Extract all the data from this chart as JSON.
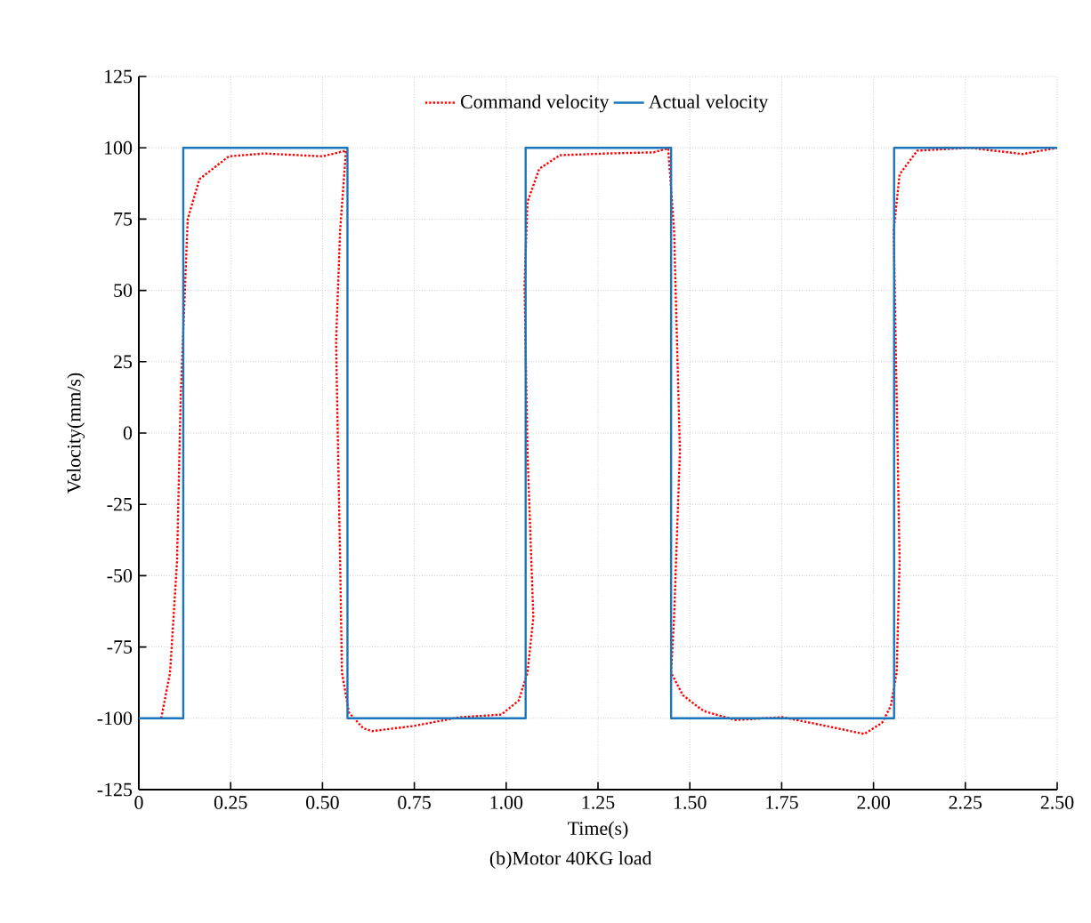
{
  "chart_data": {
    "type": "line",
    "xlabel": "Time(s)",
    "ylabel": "Velocity(mm/s)",
    "annotations": [
      "(b)Motor 40KG load"
    ],
    "xlim": [
      0,
      2.5
    ],
    "ylim": [
      -125,
      125
    ],
    "xticks": [
      0,
      {
        "value": 0.25,
        "label": "0.25"
      },
      {
        "value": 0.5,
        "label": "0.50"
      },
      {
        "value": 0.75,
        "label": "0.75"
      },
      {
        "value": 1,
        "label": "1.00"
      },
      {
        "value": 1.25,
        "label": "1.25"
      },
      {
        "value": 1.5,
        "label": "1.50"
      },
      {
        "value": 1.75,
        "label": "1.75"
      },
      {
        "value": 2,
        "label": "2.00"
      },
      {
        "value": 2.25,
        "label": "2.25"
      },
      {
        "value": 2.5,
        "label": "2.50"
      }
    ],
    "yticks": [
      -125,
      -100,
      -75,
      -50,
      -25,
      0,
      25,
      50,
      75,
      100,
      125
    ],
    "grid": true,
    "legend": "top",
    "marker": "none",
    "series": [
      {
        "name": "Command velocity",
        "color": "#ff0000",
        "line_style": "dotted",
        "x": [
          0.061,
          0.085,
          0.104,
          0.114,
          0.133,
          0.165,
          0.245,
          0.341,
          0.5,
          0.564,
          0.548,
          0.537,
          0.548,
          0.553,
          0.572,
          0.611,
          0.635,
          0.747,
          0.875,
          0.987,
          1.034,
          1.058,
          1.074,
          1.058,
          1.05,
          1.058,
          1.09,
          1.146,
          1.274,
          1.401,
          1.441,
          1.457,
          1.473,
          1.457,
          1.449,
          1.481,
          1.529,
          1.544,
          1.624,
          1.752,
          1.864,
          1.975,
          2.023,
          2.047,
          2.063,
          2.071,
          2.063,
          2.055,
          2.071,
          2.119,
          2.262,
          2.406,
          2.5
        ],
        "values": [
          -100,
          -84,
          -45,
          13,
          75,
          89,
          97,
          98,
          97,
          99,
          71,
          32,
          -45,
          -84,
          -98,
          -103.5,
          -104.5,
          -102.7,
          -99.6,
          -98.7,
          -93.8,
          -84,
          -64.7,
          -6.6,
          51.8,
          81,
          92.6,
          97.4,
          98,
          98.4,
          99.8,
          71.2,
          -6.4,
          -64.8,
          -84,
          -91.9,
          -96.7,
          -97.7,
          -100.6,
          -99.6,
          -102.5,
          -105.5,
          -101.6,
          -95.7,
          -84,
          -45,
          13,
          71,
          90.7,
          99,
          100,
          97.8,
          100
        ]
      },
      {
        "name": "Actual velocity",
        "color": "#1a75bc",
        "line_style": "solid",
        "x": [
          0,
          0.121,
          0.121,
          0.568,
          0.568,
          1.053,
          1.053,
          1.449,
          1.449,
          2.056,
          2.056,
          2.5
        ],
        "values": [
          -100,
          -100,
          100,
          100,
          -100,
          -100,
          100,
          100,
          -100,
          -100,
          100,
          100
        ]
      }
    ]
  }
}
